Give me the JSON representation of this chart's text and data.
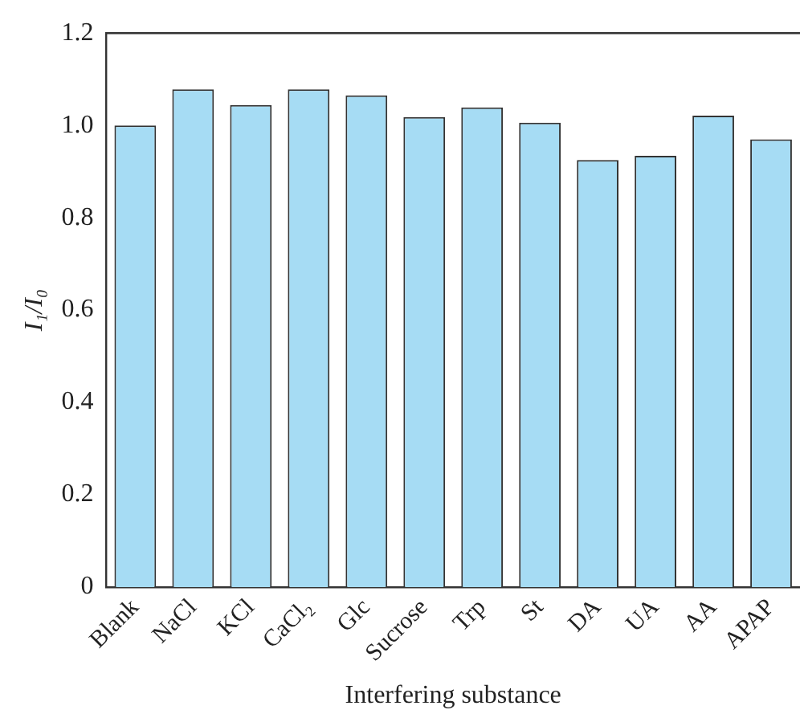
{
  "chart_data": {
    "type": "bar",
    "xlabel": "Interfering substance",
    "ylabel": "I₁/I₀",
    "categories": [
      "Blank",
      "NaCl",
      "KCl",
      "CaCl₂",
      "Glc",
      "Sucrose",
      "Trp",
      "St",
      "DA",
      "UA",
      "AA",
      "APAP"
    ],
    "values": [
      1.0,
      1.078,
      1.044,
      1.078,
      1.065,
      1.018,
      1.039,
      1.006,
      0.925,
      0.934,
      1.021,
      0.97
    ],
    "color": "#a6dcf4",
    "ylim": [
      0,
      1.2
    ],
    "yticks": [
      0,
      0.2,
      0.4,
      0.6,
      0.8,
      {
        "value": 1,
        "label": "1.0"
      },
      1.2
    ],
    "grid": false,
    "legend": false
  }
}
